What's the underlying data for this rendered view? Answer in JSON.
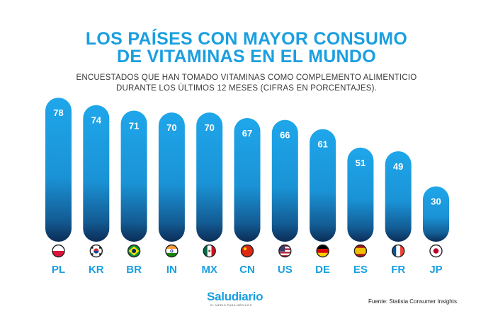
{
  "header": {
    "title_line1": "LOS PAÍSES CON MAYOR CONSUMO",
    "title_line2": "DE VITAMINAS EN EL MUNDO",
    "subtitle_line1": "ENCUESTADOS QUE HAN TOMADO VITAMINAS COMO COMPLEMENTO ALIMENTICIO",
    "subtitle_line2": "DURANTE LOS ÚLTIMOS 12 MESES (CIFRAS EN PORCENTAJES)."
  },
  "chart_data": {
    "type": "bar",
    "title": "LOS PAÍSES CON MAYOR CONSUMO DE VITAMINAS EN EL MUNDO",
    "categories": [
      "PL",
      "KR",
      "BR",
      "IN",
      "MX",
      "CN",
      "US",
      "DE",
      "ES",
      "FR",
      "JP"
    ],
    "values": [
      78,
      74,
      71,
      70,
      70,
      67,
      66,
      61,
      51,
      49,
      30
    ],
    "unit": "%",
    "xlabel": "",
    "ylabel": "",
    "ylim": [
      0,
      80
    ],
    "grid": false,
    "legend": "none",
    "flags": [
      "poland-flag-icon",
      "south-korea-flag-icon",
      "brazil-flag-icon",
      "india-flag-icon",
      "mexico-flag-icon",
      "china-flag-icon",
      "usa-flag-icon",
      "germany-flag-icon",
      "spain-flag-icon",
      "france-flag-icon",
      "japan-flag-icon"
    ]
  },
  "colors": {
    "accent": "#1a9fe0",
    "bar_top": "#1fa6ea",
    "bar_bottom": "#0b2d57",
    "label": "#1a9fe0"
  },
  "footer": {
    "logo": "Saludiario",
    "logo_tagline": "EL MEDIO PARA MÉDICOS",
    "source": "Fuente: Statista Consumer Insights"
  }
}
